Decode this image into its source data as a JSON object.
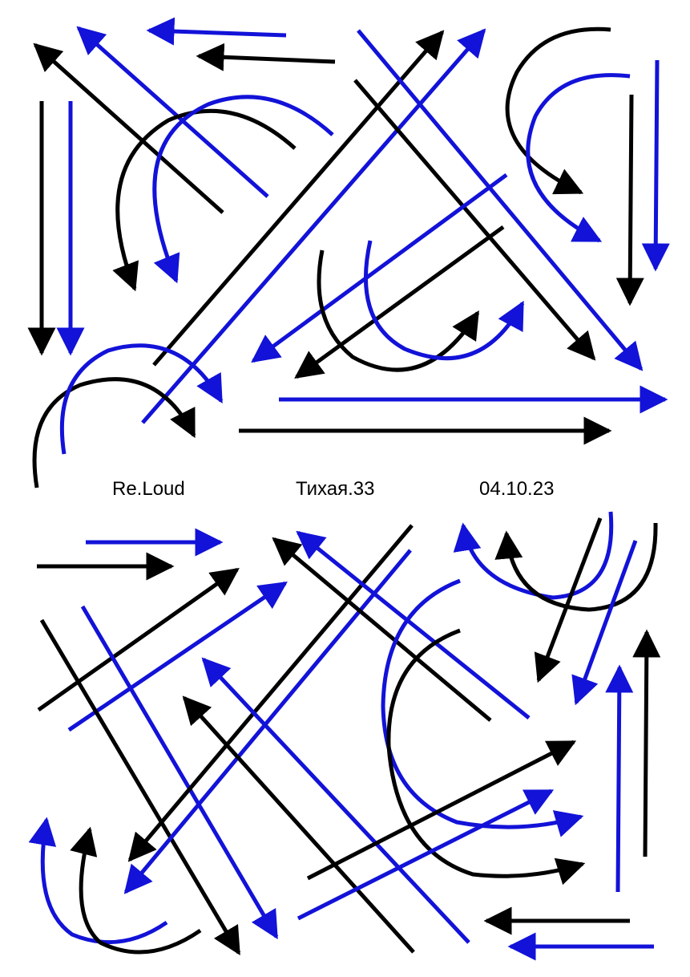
{
  "captions": {
    "left": "Re.Loud",
    "center": "Тихая.33",
    "right": "04.10.23"
  },
  "colors": {
    "black": "#000000",
    "blue": "#1212d8",
    "background": "#ffffff"
  }
}
